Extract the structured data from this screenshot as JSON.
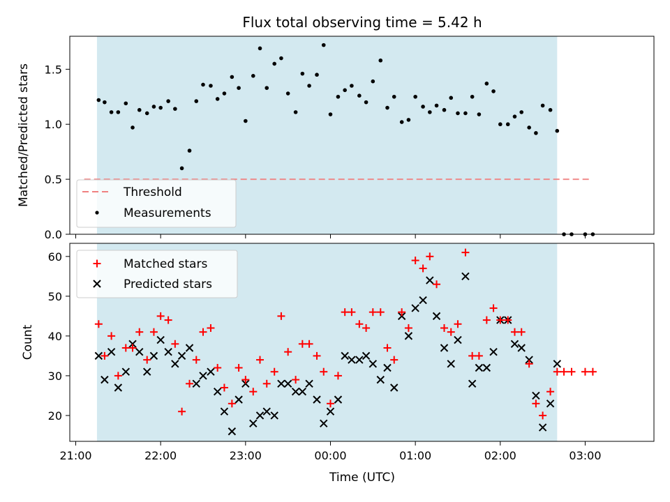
{
  "chart_data": [
    {
      "type": "scatter",
      "title": "Flux total observing time = 5.42 h",
      "ylabel": "Matched/Predicted stars",
      "ylim": [
        0,
        1.8
      ],
      "yticks": [
        0.0,
        0.5,
        1.0,
        1.5
      ],
      "ytick_labels": [
        "0.0",
        "0.5",
        "1.0",
        "1.5"
      ],
      "x_hours_range": [
        20.93,
        27.81
      ],
      "observing_window_hours": [
        21.25,
        26.67
      ],
      "shade_color": "#d3e9f0",
      "threshold": {
        "value": 0.5,
        "x_start": 21.1,
        "x_end": 27.05,
        "color": "#f08080",
        "label": "Threshold"
      },
      "legend": [
        "Threshold",
        "Measurements"
      ],
      "legend_position": "lower-left",
      "series": [
        {
          "name": "Measurements",
          "color": "#000000",
          "x_hours": [
            21.27,
            21.34,
            21.42,
            21.5,
            21.59,
            21.67,
            21.75,
            21.84,
            21.92,
            22.0,
            22.09,
            22.17,
            22.25,
            22.34,
            22.42,
            22.5,
            22.59,
            22.67,
            22.75,
            22.84,
            22.92,
            23.0,
            23.09,
            23.17,
            23.25,
            23.34,
            23.42,
            23.5,
            23.59,
            23.67,
            23.75,
            23.84,
            23.92,
            24.0,
            24.09,
            24.17,
            24.25,
            24.34,
            24.42,
            24.5,
            24.59,
            24.67,
            24.75,
            24.84,
            24.92,
            25.0,
            25.09,
            25.17,
            25.25,
            25.34,
            25.42,
            25.5,
            25.59,
            25.67,
            25.75,
            25.84,
            25.92,
            26.0,
            26.09,
            26.17,
            26.25,
            26.34,
            26.42,
            26.5,
            26.59,
            26.67,
            26.75,
            26.84,
            27.0,
            27.09
          ],
          "values": [
            1.22,
            1.2,
            1.11,
            1.11,
            1.19,
            0.97,
            1.13,
            1.1,
            1.16,
            1.15,
            1.21,
            1.14,
            0.6,
            0.76,
            1.21,
            1.36,
            1.35,
            1.23,
            1.28,
            1.43,
            1.33,
            1.03,
            1.44,
            1.69,
            1.33,
            1.55,
            1.6,
            1.28,
            1.11,
            1.46,
            1.35,
            1.45,
            1.72,
            1.09,
            1.25,
            1.31,
            1.35,
            1.26,
            1.2,
            1.39,
            1.58,
            1.15,
            1.25,
            1.02,
            1.04,
            1.25,
            1.16,
            1.11,
            1.17,
            1.13,
            1.24,
            1.1,
            1.1,
            1.25,
            1.09,
            1.37,
            1.3,
            1.0,
            1.0,
            1.07,
            1.11,
            0.97,
            0.92,
            1.17,
            1.13,
            0.94,
            0.0,
            0.0,
            0.0,
            0.0
          ]
        }
      ]
    },
    {
      "type": "scatter",
      "xlabel": "Time (UTC)",
      "ylabel": "Count",
      "ylim": [
        13.5,
        63.3
      ],
      "yticks": [
        20,
        30,
        40,
        50,
        60
      ],
      "ytick_labels": [
        "20",
        "30",
        "40",
        "50",
        "60"
      ],
      "x_hours_range": [
        20.93,
        27.81
      ],
      "xticks_hours": [
        21,
        22,
        23,
        24,
        25,
        26,
        27
      ],
      "xtick_labels": [
        "21:00",
        "22:00",
        "23:00",
        "00:00",
        "01:00",
        "02:00",
        "03:00"
      ],
      "observing_window_hours": [
        21.25,
        26.67
      ],
      "shade_color": "#d3e9f0",
      "legend": [
        "Matched stars",
        "Predicted stars"
      ],
      "legend_position": "upper-left",
      "series": [
        {
          "name": "Matched stars",
          "marker": "plus",
          "color": "#ff0000",
          "x_hours": [
            21.27,
            21.34,
            21.42,
            21.5,
            21.59,
            21.67,
            21.75,
            21.84,
            21.92,
            22.0,
            22.09,
            22.17,
            22.25,
            22.34,
            22.42,
            22.5,
            22.59,
            22.67,
            22.75,
            22.84,
            22.92,
            23.0,
            23.09,
            23.17,
            23.25,
            23.34,
            23.42,
            23.5,
            23.59,
            23.67,
            23.75,
            23.84,
            23.92,
            24.0,
            24.09,
            24.17,
            24.25,
            24.34,
            24.42,
            24.5,
            24.59,
            24.67,
            24.75,
            24.84,
            24.92,
            25.0,
            25.09,
            25.17,
            25.25,
            25.34,
            25.42,
            25.5,
            25.59,
            25.67,
            25.75,
            25.84,
            25.92,
            26.0,
            26.09,
            26.17,
            26.25,
            26.34,
            26.42,
            26.5,
            26.59,
            26.67,
            26.75,
            26.84,
            27.0,
            27.09
          ],
          "values": [
            43,
            35,
            40,
            30,
            37,
            37,
            41,
            34,
            41,
            45,
            44,
            38,
            21,
            28,
            34,
            41,
            42,
            32,
            27,
            23,
            32,
            29,
            26,
            34,
            28,
            31,
            45,
            36,
            29,
            38,
            38,
            35,
            31,
            23,
            30,
            46,
            46,
            43,
            42,
            46,
            46,
            37,
            34,
            46,
            42,
            59,
            57,
            60,
            53,
            42,
            41,
            43,
            61,
            35,
            35,
            44,
            47,
            44,
            44,
            41,
            41,
            33,
            23,
            20,
            26,
            31,
            31,
            31,
            31,
            31
          ]
        },
        {
          "name": "Predicted stars",
          "marker": "x",
          "color": "#000000",
          "x_hours": [
            21.27,
            21.34,
            21.42,
            21.5,
            21.59,
            21.67,
            21.75,
            21.84,
            21.92,
            22.0,
            22.09,
            22.17,
            22.25,
            22.34,
            22.42,
            22.5,
            22.59,
            22.67,
            22.75,
            22.84,
            22.92,
            23.0,
            23.09,
            23.17,
            23.25,
            23.34,
            23.42,
            23.5,
            23.59,
            23.67,
            23.75,
            23.84,
            23.92,
            24.0,
            24.09,
            24.17,
            24.25,
            24.34,
            24.42,
            24.5,
            24.59,
            24.67,
            24.75,
            24.84,
            24.92,
            25.0,
            25.09,
            25.17,
            25.25,
            25.34,
            25.42,
            25.5,
            25.59,
            25.67,
            25.75,
            25.84,
            25.92,
            26.0,
            26.09,
            26.17,
            26.25,
            26.34,
            26.42,
            26.5,
            26.59,
            26.67
          ],
          "values": [
            35,
            29,
            36,
            27,
            31,
            38,
            36,
            31,
            35,
            39,
            36,
            33,
            35,
            37,
            28,
            30,
            31,
            26,
            21,
            16,
            24,
            28,
            18,
            20,
            21,
            20,
            28,
            28,
            26,
            26,
            28,
            24,
            18,
            21,
            24,
            35,
            34,
            34,
            35,
            33,
            29,
            32,
            27,
            45,
            40,
            47,
            49,
            54,
            45,
            37,
            33,
            39,
            55,
            28,
            32,
            32,
            36,
            44,
            44,
            38,
            37,
            34,
            25,
            17,
            23,
            33
          ]
        }
      ]
    }
  ]
}
